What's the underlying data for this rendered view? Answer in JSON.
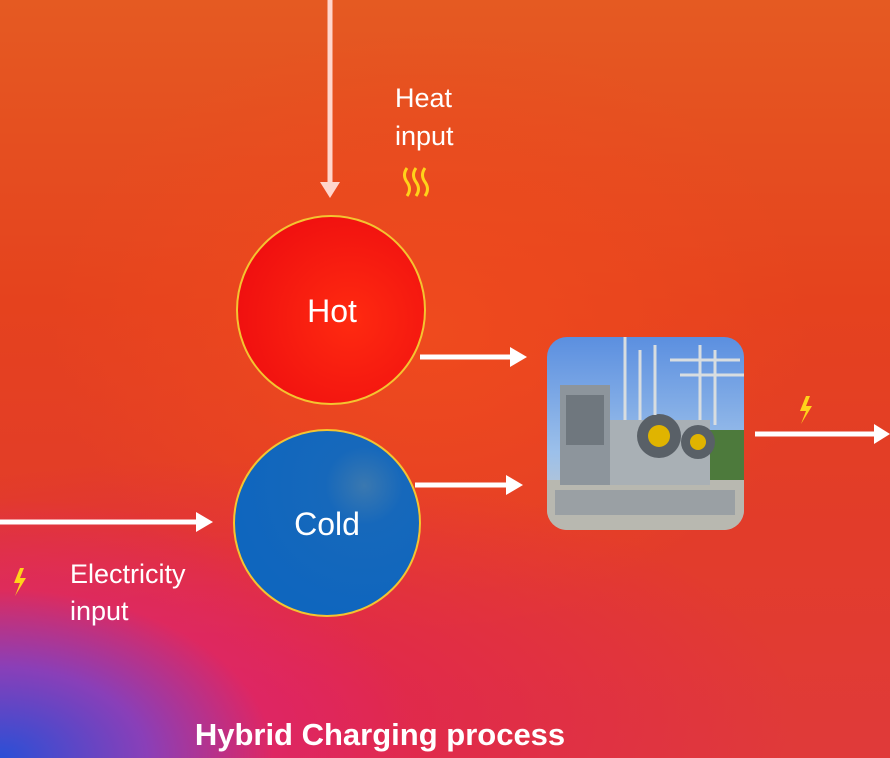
{
  "heat_input": {
    "lines": [
      "Heat",
      "input"
    ]
  },
  "hot": {
    "label": "Hot"
  },
  "cold": {
    "label": "Cold"
  },
  "electricity_input": {
    "lines": [
      "Electricity",
      "input"
    ]
  },
  "caption": "Hybrid Charging process"
}
